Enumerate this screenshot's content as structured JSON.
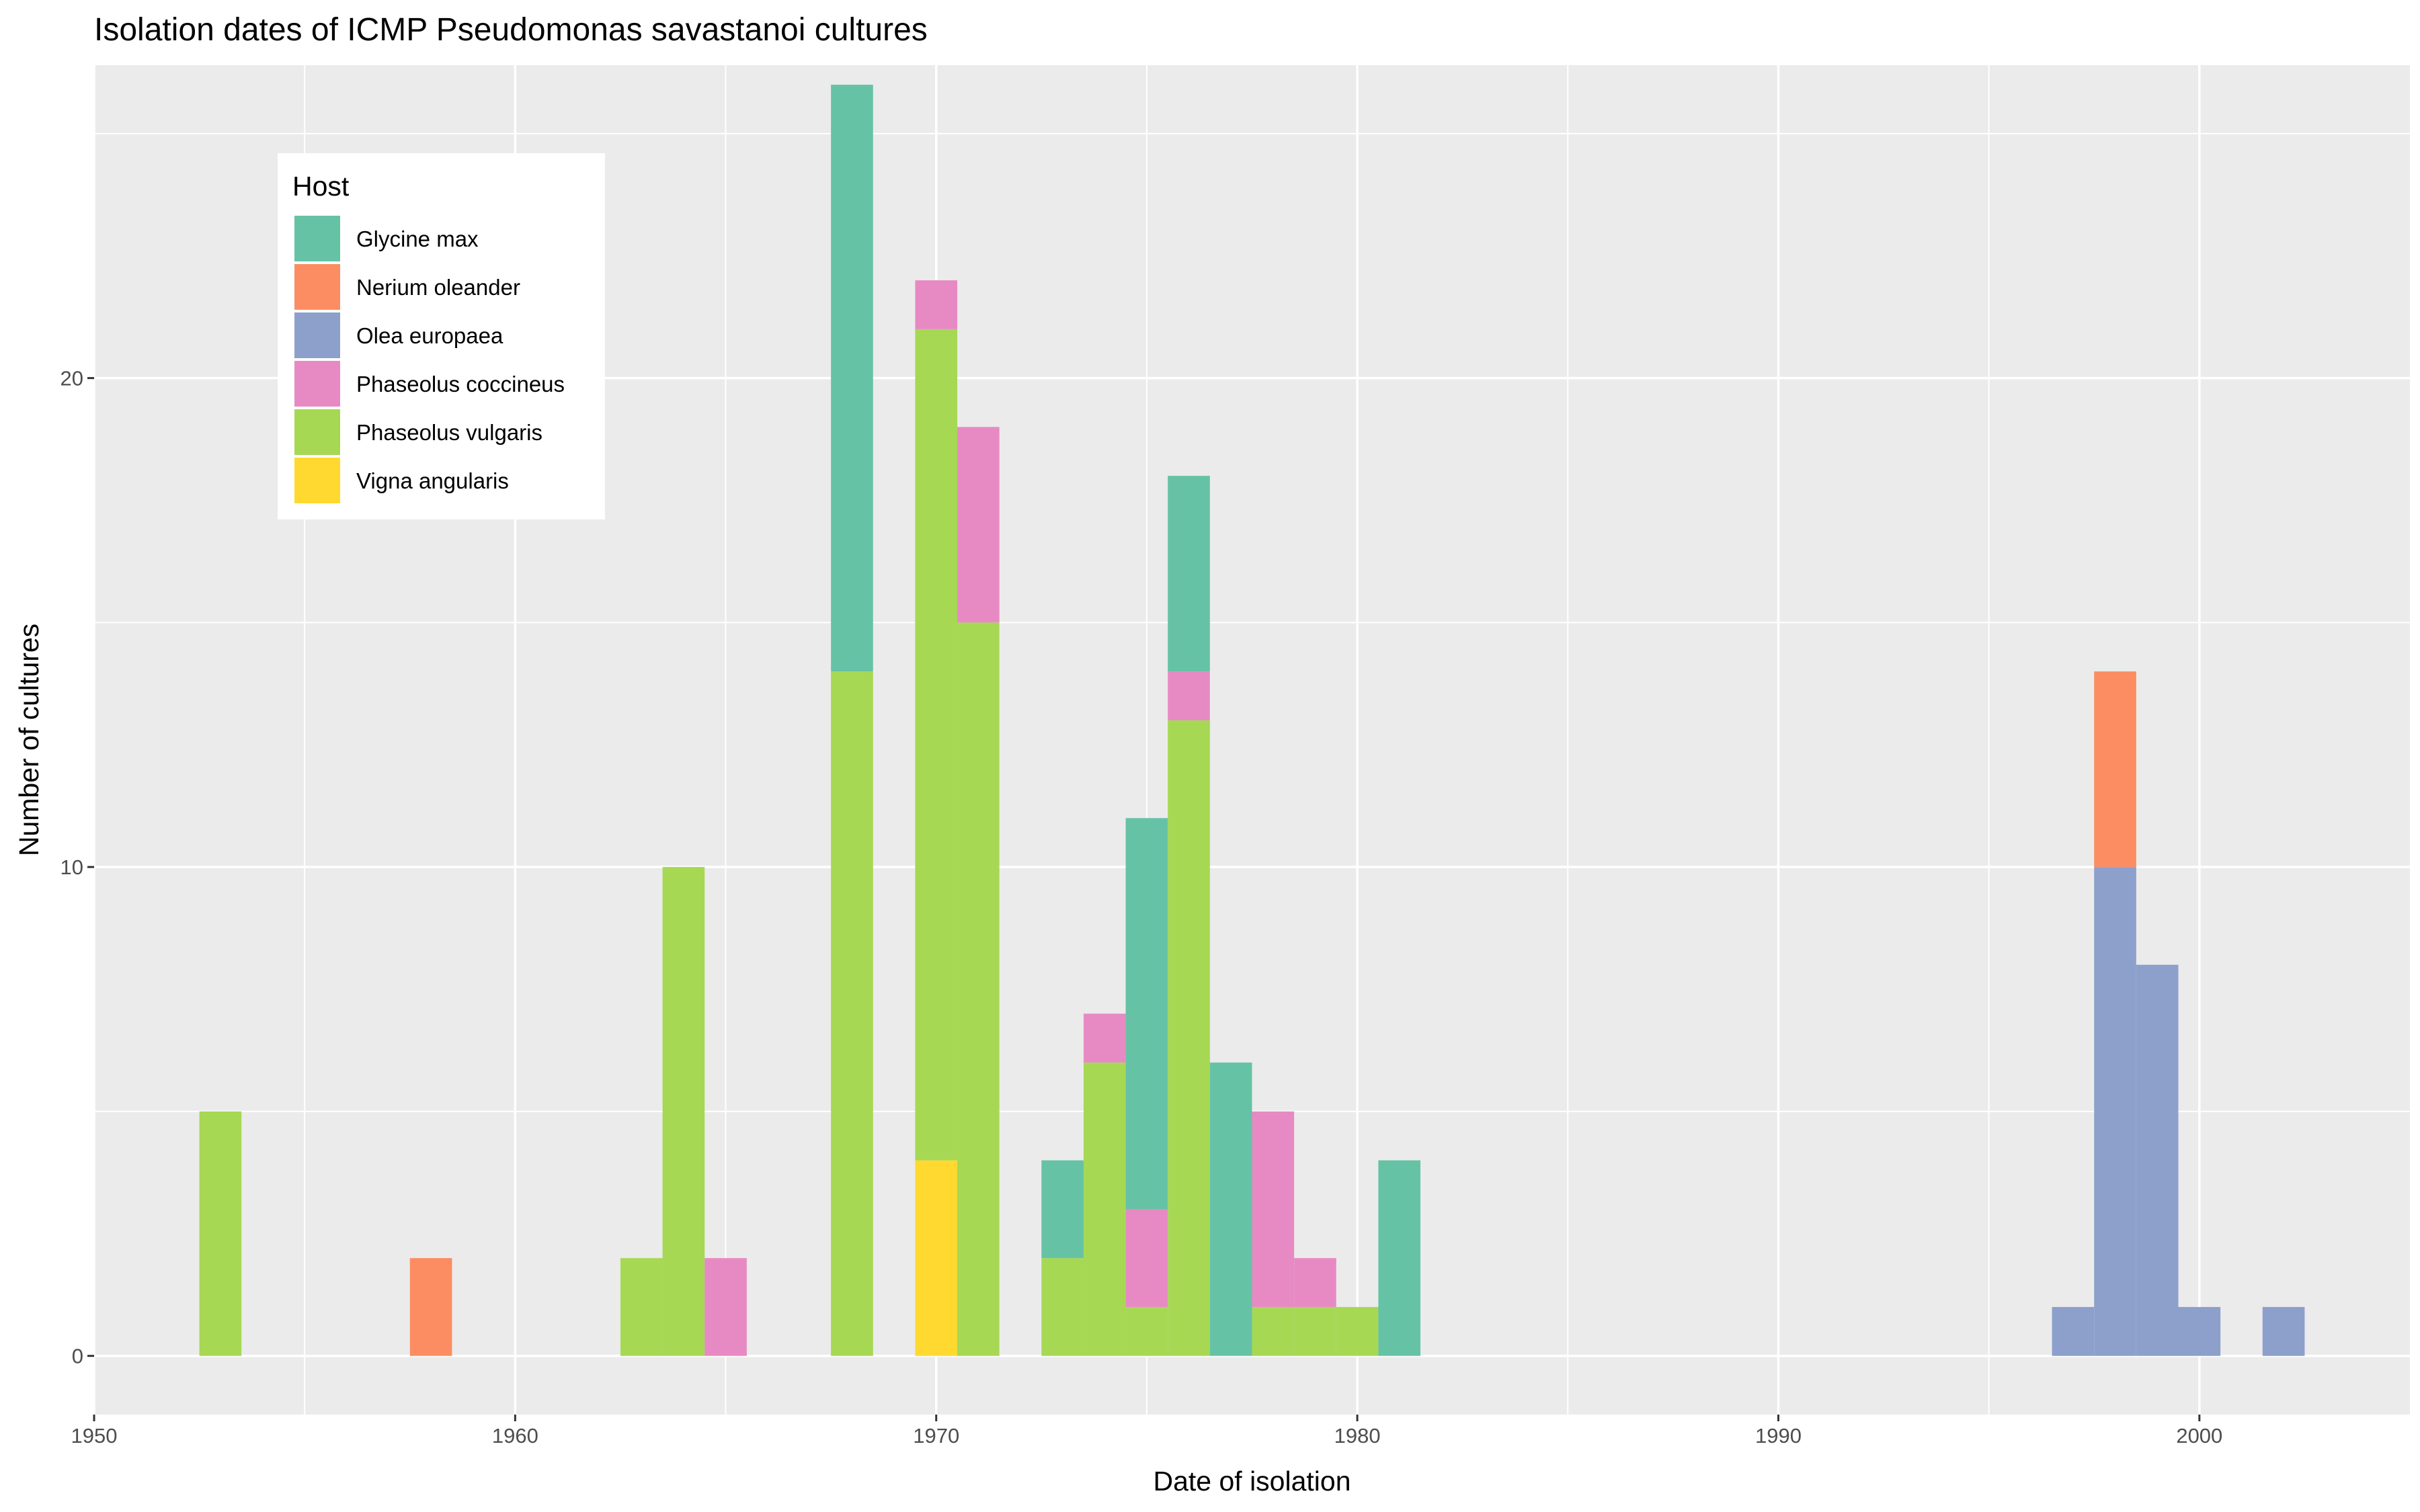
{
  "chart_data": {
    "type": "bar",
    "stacked": true,
    "title": "Isolation dates of ICMP Pseudomonas savastanoi cultures",
    "xlabel": "Date of isolation",
    "ylabel": "Number of cultures",
    "xlim": [
      1950,
      2005
    ],
    "ylim": [
      -1.2,
      26.4
    ],
    "x_ticks": [
      1950,
      1960,
      1970,
      1980,
      1990,
      2000
    ],
    "y_ticks": [
      0,
      10,
      20
    ],
    "bin_width": 1,
    "grid": true,
    "legend": {
      "title": "Host",
      "position": "top-left-inside",
      "entries": [
        "Glycine max",
        "Nerium oleander",
        "Olea europaea",
        "Phaseolus coccineus",
        "Phaseolus vulgaris",
        "Vigna angularis"
      ]
    },
    "series": [
      {
        "name": "Vigna angularis",
        "color": "#FFD92F",
        "points": [
          {
            "x": 1970,
            "y": 4
          }
        ]
      },
      {
        "name": "Phaseolus vulgaris",
        "color": "#A6D854",
        "points": [
          {
            "x": 1953,
            "y": 5
          },
          {
            "x": 1963,
            "y": 2
          },
          {
            "x": 1964,
            "y": 10
          },
          {
            "x": 1968,
            "y": 14
          },
          {
            "x": 1970,
            "y": 17
          },
          {
            "x": 1971,
            "y": 15
          },
          {
            "x": 1973,
            "y": 2
          },
          {
            "x": 1974,
            "y": 6
          },
          {
            "x": 1975,
            "y": 1
          },
          {
            "x": 1976,
            "y": 13
          },
          {
            "x": 1978,
            "y": 1
          },
          {
            "x": 1979,
            "y": 1
          },
          {
            "x": 1980,
            "y": 1
          }
        ]
      },
      {
        "name": "Phaseolus coccineus",
        "color": "#E78AC3",
        "points": [
          {
            "x": 1965,
            "y": 2
          },
          {
            "x": 1970,
            "y": 1
          },
          {
            "x": 1971,
            "y": 4
          },
          {
            "x": 1974,
            "y": 1
          },
          {
            "x": 1975,
            "y": 2
          },
          {
            "x": 1976,
            "y": 1
          },
          {
            "x": 1978,
            "y": 4
          },
          {
            "x": 1979,
            "y": 1
          }
        ]
      },
      {
        "name": "Olea europaea",
        "color": "#8DA0CB",
        "points": [
          {
            "x": 1997,
            "y": 1
          },
          {
            "x": 1998,
            "y": 10
          },
          {
            "x": 1999,
            "y": 8
          },
          {
            "x": 2000,
            "y": 1
          },
          {
            "x": 2002,
            "y": 1
          }
        ]
      },
      {
        "name": "Nerium oleander",
        "color": "#FC8D62",
        "points": [
          {
            "x": 1958,
            "y": 2
          },
          {
            "x": 1998,
            "y": 4
          }
        ]
      },
      {
        "name": "Glycine max",
        "color": "#66C2A5",
        "points": [
          {
            "x": 1968,
            "y": 12
          },
          {
            "x": 1973,
            "y": 2
          },
          {
            "x": 1975,
            "y": 8
          },
          {
            "x": 1976,
            "y": 4
          },
          {
            "x": 1977,
            "y": 6
          },
          {
            "x": 1981,
            "y": 4
          }
        ]
      }
    ]
  }
}
